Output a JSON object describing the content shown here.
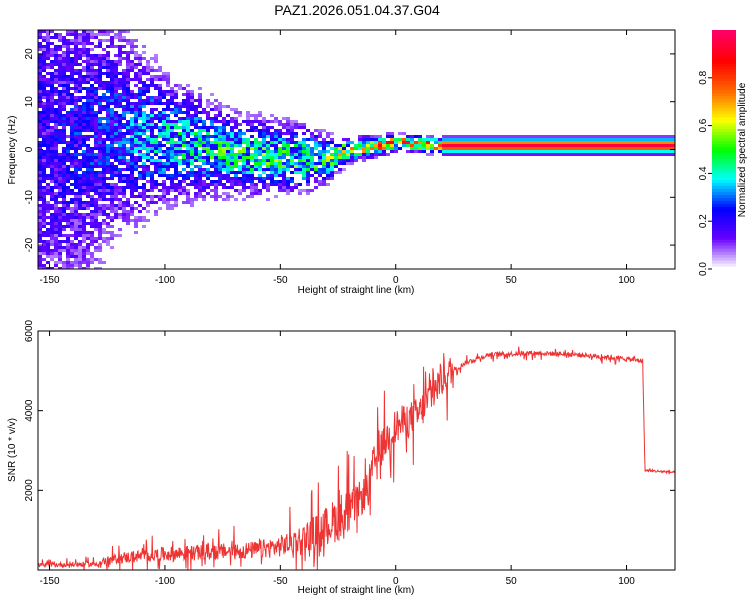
{
  "title": "PAZ1.2026.051.04.37.G04",
  "chart_data": [
    {
      "type": "heatmap",
      "name": "spectrogram",
      "xlabel": "Height of straight line (km)",
      "ylabel": "Frequency (Hz)",
      "xlim": [
        -155,
        121
      ],
      "ylim": [
        -25,
        25
      ],
      "xticks": [
        -150,
        -100,
        -50,
        0,
        50,
        100
      ],
      "yticks": [
        -20,
        -10,
        0,
        10,
        20
      ],
      "colorbar": {
        "label": "Normalized spectral amplitude",
        "range": [
          0,
          1
        ],
        "ticks": [
          0.0,
          0.2,
          0.4,
          0.6,
          0.8
        ],
        "tick_labels": [
          "0.0",
          "0.2",
          "0.4",
          "0.6",
          "0.8"
        ],
        "colors": [
          "#ffffff",
          "#6600ff",
          "#0000ff",
          "#00ffff",
          "#00ff00",
          "#ffff00",
          "#ff6600",
          "#ff0000",
          "#ff0066"
        ]
      },
      "ridge": [
        {
          "x": -150,
          "f": 2,
          "spread": 28,
          "amp": 0.22
        },
        {
          "x": -120,
          "f": 4,
          "spread": 14,
          "amp": 0.3
        },
        {
          "x": -100,
          "f": 2,
          "spread": 8,
          "amp": 0.42
        },
        {
          "x": -70,
          "f": -1,
          "spread": 5,
          "amp": 0.5
        },
        {
          "x": -40,
          "f": -2,
          "spread": 4,
          "amp": 0.55
        },
        {
          "x": -30,
          "f": -2,
          "spread": 3,
          "amp": 0.55
        },
        {
          "x": -20,
          "f": 0,
          "spread": 1.5,
          "amp": 0.7
        },
        {
          "x": -10,
          "f": 0.5,
          "spread": 1.2,
          "amp": 0.78
        },
        {
          "x": 0,
          "f": 1.5,
          "spread": 1,
          "amp": 0.9
        },
        {
          "x": 20,
          "f": 0.8,
          "spread": 0.9,
          "amp": 0.95
        },
        {
          "x": 121,
          "f": 0.8,
          "spread": 0.9,
          "amp": 0.95
        }
      ]
    },
    {
      "type": "line",
      "name": "snr",
      "xlabel": "Height of straight line (km)",
      "ylabel": "SNR (10 * v/v)",
      "xlim": [
        -155,
        121
      ],
      "ylim": [
        0,
        6000
      ],
      "xticks": [
        -150,
        -100,
        -50,
        0,
        50,
        100
      ],
      "yticks": [
        2000,
        4000,
        6000
      ],
      "color": "#ee3333",
      "series_profile": [
        [
          -155,
          120
        ],
        [
          -130,
          150
        ],
        [
          -120,
          300
        ],
        [
          -110,
          350
        ],
        [
          -100,
          400
        ],
        [
          -80,
          450
        ],
        [
          -60,
          500
        ],
        [
          -50,
          600
        ],
        [
          -40,
          800
        ],
        [
          -30,
          1100
        ],
        [
          -20,
          1500
        ],
        [
          -12,
          2000
        ],
        [
          -10,
          2600
        ],
        [
          -5,
          3200
        ],
        [
          0,
          3600
        ],
        [
          10,
          3900
        ],
        [
          20,
          4800
        ],
        [
          30,
          5200
        ],
        [
          40,
          5400
        ],
        [
          60,
          5450
        ],
        [
          80,
          5400
        ],
        [
          100,
          5300
        ],
        [
          107,
          5250
        ],
        [
          108,
          2500
        ],
        [
          121,
          2450
        ]
      ]
    }
  ]
}
